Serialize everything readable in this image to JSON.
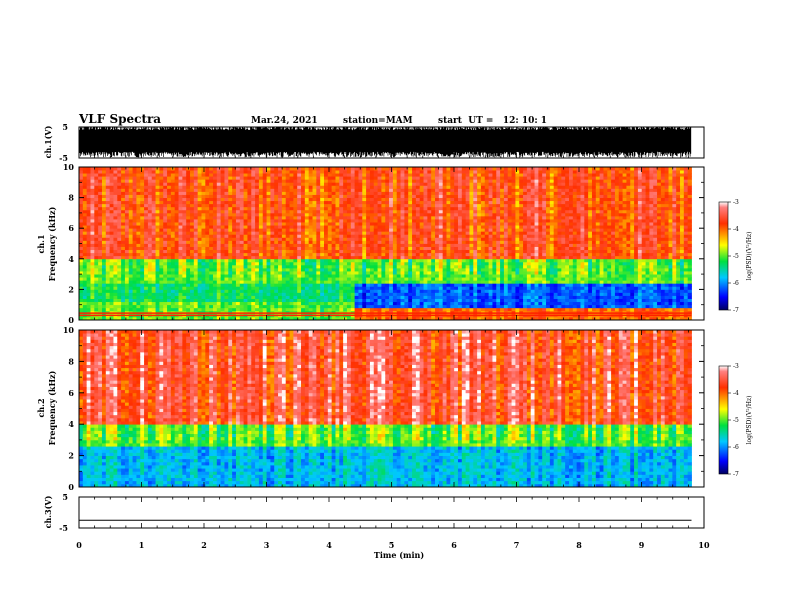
{
  "header": {
    "title": "VLF Spectra",
    "date": "Mar.24, 2021",
    "station": "station=MAM",
    "start": "start  UT =   12: 10: 1"
  },
  "colors": {
    "spec_low": "#0000cc",
    "spec_mid1": "#00c8ff",
    "spec_mid2": "#00e040",
    "spec_mid3": "#ffff00",
    "spec_high": "#ff2000"
  },
  "chart_data": [
    {
      "type": "line",
      "panel": "ch1-waveform",
      "ylabel": "ch.1(V)",
      "ylim": [
        -5,
        5
      ],
      "yticks": [
        "5",
        "-5"
      ],
      "description_values": {
        "typical_range_V": [
          -3,
          4
        ]
      }
    },
    {
      "type": "heatmap",
      "panel": "ch1-spectrogram",
      "ylabel": "ch.1\nFrequency (kHz)",
      "ylim": [
        0,
        10
      ],
      "yticks": [
        "10",
        "8",
        "6",
        "4",
        "2",
        "0"
      ],
      "colorbar": {
        "label": "log(PSD)(V²/Hz)",
        "range": [
          -7,
          -3
        ],
        "ticks": [
          "-3",
          "-4",
          "-5",
          "-6",
          "-7"
        ]
      },
      "bands": [
        {
          "t_min": [
            0,
            4.4
          ],
          "f_kHz": [
            0,
            1.2
          ],
          "log_psd": -5.0
        },
        {
          "t_min": [
            0,
            4.4
          ],
          "f_kHz": [
            1.2,
            2.4
          ],
          "log_psd": -5.3
        },
        {
          "t_min": [
            4.4,
            9.8
          ],
          "f_kHz": [
            0.8,
            2.4
          ],
          "log_psd": -6.2
        },
        {
          "t_min": [
            0,
            9.8
          ],
          "f_kHz": [
            2.4,
            4.0
          ],
          "log_psd": -5.0
        },
        {
          "t_min": [
            0,
            9.8
          ],
          "f_kHz": [
            4.0,
            10
          ],
          "log_psd": -3.8
        }
      ]
    },
    {
      "type": "heatmap",
      "panel": "ch2-spectrogram",
      "ylabel": "ch.2\nFrequency (kHz)",
      "ylim": [
        0,
        10
      ],
      "yticks": [
        "10",
        "8",
        "6",
        "4",
        "2",
        "0"
      ],
      "colorbar": {
        "label": "log(PSD)(V²/Hz)",
        "range": [
          -7,
          -3
        ],
        "ticks": [
          "-3",
          "-4",
          "-5",
          "-6",
          "-7"
        ]
      },
      "bands": [
        {
          "t_min": [
            0,
            9.8
          ],
          "f_kHz": [
            0,
            2.6
          ],
          "log_psd": -5.8
        },
        {
          "t_min": [
            0,
            9.8
          ],
          "f_kHz": [
            2.6,
            4.0
          ],
          "log_psd": -5.0
        },
        {
          "t_min": [
            0,
            9.8
          ],
          "f_kHz": [
            4.0,
            10
          ],
          "log_psd": -3.6
        }
      ]
    },
    {
      "type": "line",
      "panel": "ch3-waveform",
      "ylabel": "ch.3(V)",
      "ylim": [
        -5,
        5
      ],
      "yticks": [
        "5",
        "-5"
      ],
      "values": {
        "constant_V": -2.5
      }
    }
  ],
  "xaxis": {
    "label": "Time (min)",
    "range": [
      0,
      10
    ],
    "ticks": [
      "0",
      "1",
      "2",
      "3",
      "4",
      "5",
      "6",
      "7",
      "8",
      "9",
      "10"
    ],
    "data_end_min": 9.8
  }
}
